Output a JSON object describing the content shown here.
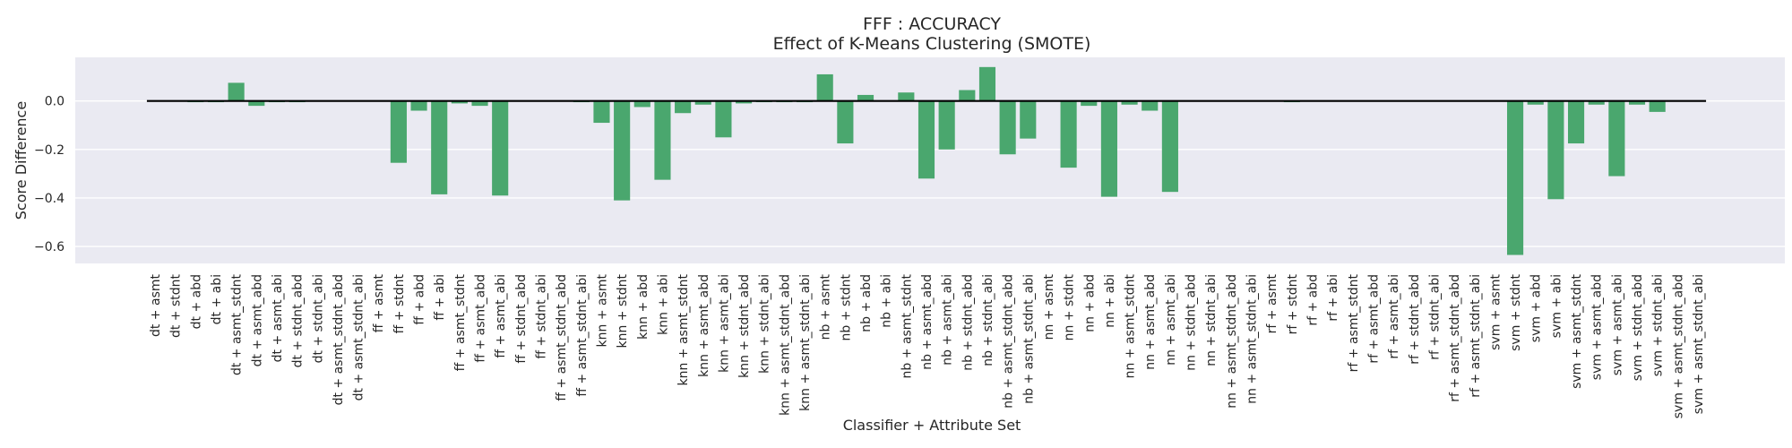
{
  "chart_data": {
    "type": "bar",
    "title": "FFF : ACCURACY",
    "subtitle": "Effect of K-Means Clustering (SMOTE)",
    "xlabel": "Classifier + Attribute Set",
    "ylabel": "Score Difference",
    "ylim": [
      -0.67,
      0.18
    ],
    "yticks": [
      0.0,
      -0.2,
      -0.4,
      -0.6
    ],
    "ytick_labels": [
      "0.0",
      "−0.2",
      "−0.4",
      "−0.6"
    ],
    "grid": true,
    "bar_color": "#4aa76e",
    "background_color": "#eaeaf2",
    "zero_line_color": "#000000",
    "categories": [
      "dt + asmt",
      "dt + stdnt",
      "dt + abd",
      "dt + abi",
      "dt + asmt_stdnt",
      "dt + asmt_abd",
      "dt + asmt_abi",
      "dt + stdnt_abd",
      "dt + stdnt_abi",
      "dt + asmt_stdnt_abd",
      "dt + asmt_stdnt_abi",
      "ff + asmt",
      "ff + stdnt",
      "ff + abd",
      "ff + abi",
      "ff + asmt_stdnt",
      "ff + asmt_abd",
      "ff + asmt_abi",
      "ff + stdnt_abd",
      "ff + stdnt_abi",
      "ff + asmt_stdnt_abd",
      "ff + asmt_stdnt_abi",
      "knn + asmt",
      "knn + stdnt",
      "knn + abd",
      "knn + abi",
      "knn + asmt_stdnt",
      "knn + asmt_abd",
      "knn + asmt_abi",
      "knn + stdnt_abd",
      "knn + stdnt_abi",
      "knn + asmt_stdnt_abd",
      "knn + asmt_stdnt_abi",
      "nb + asmt",
      "nb + stdnt",
      "nb + abd",
      "nb + abi",
      "nb + asmt_stdnt",
      "nb + asmt_abd",
      "nb + asmt_abi",
      "nb + stdnt_abd",
      "nb + stdnt_abi",
      "nb + asmt_stdnt_abd",
      "nb + asmt_stdnt_abi",
      "nn + asmt",
      "nn + stdnt",
      "nn + abd",
      "nn + abi",
      "nn + asmt_stdnt",
      "nn + asmt_abd",
      "nn + asmt_abi",
      "nn + stdnt_abd",
      "nn + stdnt_abi",
      "nn + asmt_stdnt_abd",
      "nn + asmt_stdnt_abi",
      "rf + asmt",
      "rf + stdnt",
      "rf + abd",
      "rf + abi",
      "rf + asmt_stdnt",
      "rf + asmt_abd",
      "rf + asmt_abi",
      "rf + stdnt_abd",
      "rf + stdnt_abi",
      "rf + asmt_stdnt_abd",
      "rf + asmt_stdnt_abi",
      "svm + asmt",
      "svm + stdnt",
      "svm + abd",
      "svm + abi",
      "svm + asmt_stdnt",
      "svm + asmt_abd",
      "svm + asmt_abi",
      "svm + stdnt_abd",
      "svm + stdnt_abi",
      "svm + asmt_stdnt_abd",
      "svm + asmt_stdnt_abi"
    ],
    "values": [
      0.0,
      0.0,
      -0.005,
      -0.005,
      0.075,
      -0.02,
      -0.005,
      -0.005,
      0.0,
      0.0,
      0.0,
      0.0,
      -0.255,
      -0.04,
      -0.385,
      -0.01,
      -0.02,
      -0.39,
      0.0,
      0.0,
      0.0,
      -0.005,
      -0.09,
      -0.41,
      -0.025,
      -0.325,
      -0.05,
      -0.015,
      -0.15,
      -0.01,
      -0.005,
      -0.005,
      -0.005,
      0.11,
      -0.175,
      0.025,
      0.0,
      0.035,
      -0.32,
      -0.2,
      0.045,
      0.14,
      -0.22,
      -0.155,
      0.0,
      -0.275,
      -0.02,
      -0.395,
      -0.015,
      -0.04,
      -0.375,
      0.0,
      0.0,
      0.0,
      0.0,
      0.0,
      -0.005,
      0.0,
      0.0,
      0.0,
      0.0,
      0.0,
      0.0,
      0.0,
      0.0,
      0.0,
      0.0,
      -0.635,
      -0.015,
      -0.405,
      -0.175,
      -0.015,
      -0.31,
      -0.015,
      -0.045,
      0.0,
      0.0
    ]
  }
}
